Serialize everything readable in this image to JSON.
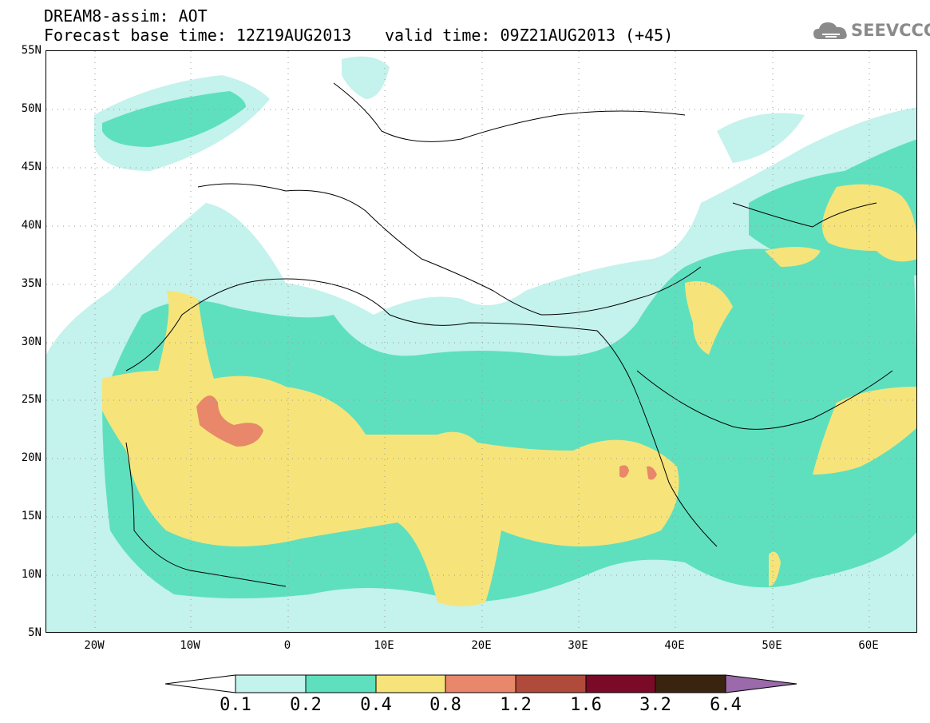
{
  "header": {
    "line1": "DREAM8-assim: AOT",
    "line2": "Forecast base time: 12Z19AUG2013",
    "valid": "valid time: 09Z21AUG2013 (+45)"
  },
  "logo": {
    "text": "SEEVCCC",
    "icon": "cloud-icon",
    "color": "#8a8a8a"
  },
  "map": {
    "lon_range": [
      -25,
      65
    ],
    "lat_range": [
      5,
      55
    ],
    "y_ticks": [
      "55N",
      "50N",
      "45N",
      "40N",
      "35N",
      "30N",
      "25N",
      "20N",
      "15N",
      "10N",
      "5N"
    ],
    "x_ticks": [
      "20W",
      "10W",
      "0",
      "10E",
      "20E",
      "30E",
      "40E",
      "50E",
      "60E"
    ]
  },
  "legend": {
    "labels": [
      "0.1",
      "0.2",
      "0.4",
      "0.8",
      "1.2",
      "1.6",
      "3.2",
      "6.4"
    ],
    "colors": [
      "#c4f2ec",
      "#5ee0be",
      "#f6e47a",
      "#e8876a",
      "#b04a3a",
      "#7a0a28",
      "#3a2410",
      "#9a6aaa"
    ]
  }
}
